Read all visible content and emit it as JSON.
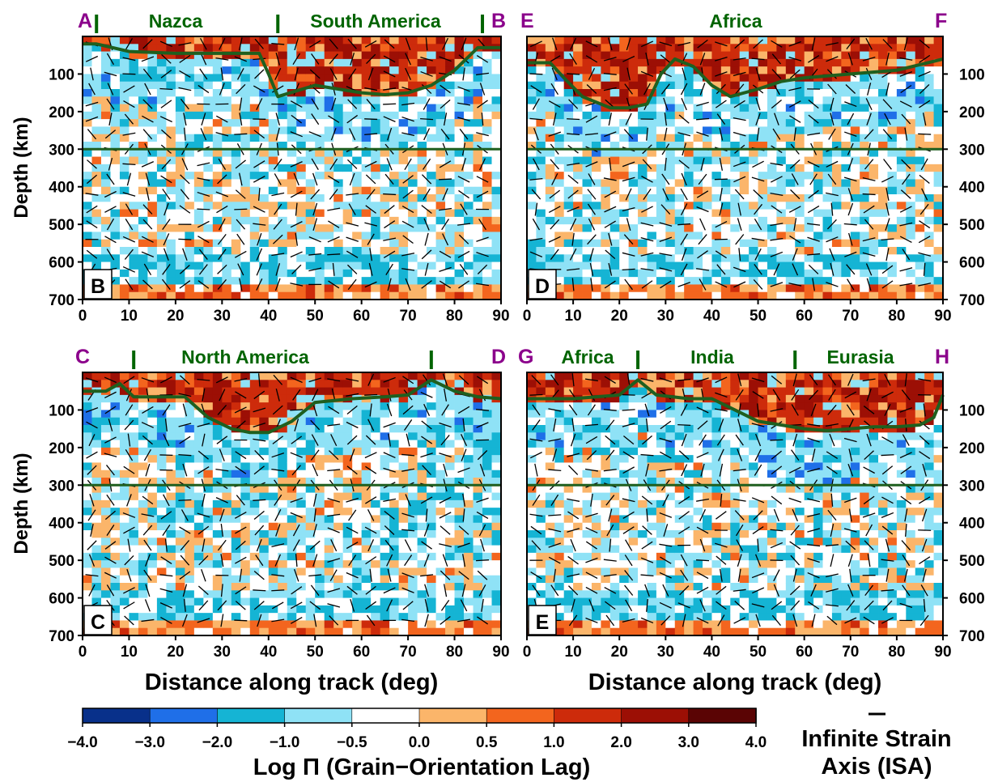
{
  "colors": {
    "region_label": "#006400",
    "endpoint_label": "#8b008b",
    "lab_line": "#1f5f1f",
    "axis": "#000000",
    "isa_tick": "#000000"
  },
  "colorbar": {
    "title": "Log Π (Grain−Orientation Lag)",
    "ticks": [
      "−4.0",
      "−3.0",
      "−2.0",
      "−1.0",
      "−0.5",
      "0.0",
      "0.5",
      "1.0",
      "2.0",
      "3.0",
      "4.0"
    ],
    "colors": [
      "#08308a",
      "#1f6fe8",
      "#15b4d4",
      "#8fe2f6",
      "#ffffff",
      "#fbb56a",
      "#f3651e",
      "#cd2b0b",
      "#9c0f05",
      "#5a0404"
    ]
  },
  "legend": {
    "isa_line1": "Infinite Strain",
    "isa_line2": "Axis (ISA)"
  },
  "chart_data": [
    {
      "type": "heatmap",
      "panel_label": "B",
      "endpoints": [
        "A",
        "B"
      ],
      "regions": [
        {
          "name": "Nazca",
          "x": 20
        },
        {
          "name": "South America",
          "x": 63
        }
      ],
      "boundaries": [
        3,
        42,
        86
      ],
      "xticks": [
        "0",
        "10",
        "20",
        "30",
        "40",
        "50",
        "60",
        "70",
        "80",
        "90"
      ],
      "yticks": [
        "100",
        "200",
        "300",
        "400",
        "500",
        "600",
        "700"
      ],
      "ylabel": "Depth (km)",
      "xlabel": "",
      "ylabel_side": "left",
      "xlim": [
        0,
        90
      ],
      "ylim": [
        0,
        700
      ],
      "reference_depth": 300,
      "lab_x": [
        0,
        3,
        10,
        20,
        30,
        38,
        40,
        42,
        46,
        50,
        55,
        60,
        65,
        70,
        75,
        80,
        85,
        90
      ],
      "lab_depth": [
        20,
        20,
        40,
        45,
        45,
        45,
        100,
        160,
        145,
        130,
        140,
        150,
        155,
        150,
        130,
        90,
        30,
        30
      ]
    },
    {
      "type": "heatmap",
      "panel_label": "D",
      "endpoints": [
        "E",
        "F"
      ],
      "regions": [
        {
          "name": "Africa",
          "x": 45
        }
      ],
      "boundaries": [],
      "xticks": [
        "0",
        "10",
        "20",
        "30",
        "40",
        "50",
        "60",
        "70",
        "80",
        "90"
      ],
      "yticks": [
        "100",
        "200",
        "300",
        "400",
        "500",
        "600",
        "700"
      ],
      "ylabel": "",
      "xlabel": "",
      "ylabel_side": "right",
      "xlim": [
        0,
        90
      ],
      "ylim": [
        0,
        700
      ],
      "reference_depth": 300,
      "lab_x": [
        0,
        5,
        8,
        12,
        18,
        22,
        26,
        29,
        32,
        36,
        40,
        44,
        50,
        55,
        60,
        70,
        80,
        90
      ],
      "lab_depth": [
        70,
        70,
        110,
        160,
        190,
        190,
        180,
        100,
        60,
        80,
        130,
        160,
        140,
        120,
        110,
        100,
        90,
        60
      ]
    },
    {
      "type": "heatmap",
      "panel_label": "C",
      "endpoints": [
        "C",
        "D"
      ],
      "regions": [
        {
          "name": "North America",
          "x": 35
        }
      ],
      "boundaries": [
        11,
        75
      ],
      "xticks": [
        "0",
        "10",
        "20",
        "30",
        "40",
        "50",
        "60",
        "70",
        "80",
        "90"
      ],
      "yticks": [
        "100",
        "200",
        "300",
        "400",
        "500",
        "600",
        "700"
      ],
      "ylabel": "Depth (km)",
      "xlabel": "Distance along track (deg)",
      "ylabel_side": "left",
      "xlim": [
        0,
        90
      ],
      "ylim": [
        0,
        700
      ],
      "reference_depth": 300,
      "lab_x": [
        0,
        5,
        8,
        11,
        15,
        22,
        27,
        32,
        36,
        40,
        45,
        50,
        58,
        65,
        70,
        75,
        80,
        85,
        90
      ],
      "lab_depth": [
        50,
        50,
        30,
        65,
        65,
        65,
        120,
        150,
        160,
        160,
        130,
        80,
        70,
        65,
        60,
        20,
        50,
        65,
        70
      ]
    },
    {
      "type": "heatmap",
      "panel_label": "E",
      "endpoints": [
        "G",
        "H"
      ],
      "regions": [
        {
          "name": "Africa",
          "x": 13
        },
        {
          "name": "India",
          "x": 40
        },
        {
          "name": "Eurasia",
          "x": 72
        }
      ],
      "boundaries": [
        24,
        58
      ],
      "xticks": [
        "0",
        "10",
        "20",
        "30",
        "40",
        "50",
        "60",
        "70",
        "80",
        "90"
      ],
      "yticks": [
        "100",
        "200",
        "300",
        "400",
        "500",
        "600",
        "700"
      ],
      "ylabel": "",
      "xlabel": "Distance along track (deg)",
      "ylabel_side": "right",
      "xlim": [
        0,
        90
      ],
      "ylim": [
        0,
        700
      ],
      "reference_depth": 300,
      "lab_x": [
        0,
        10,
        20,
        24,
        28,
        35,
        40,
        45,
        50,
        55,
        60,
        65,
        70,
        75,
        80,
        85,
        88,
        90
      ],
      "lab_depth": [
        70,
        70,
        60,
        20,
        60,
        70,
        70,
        100,
        130,
        140,
        150,
        155,
        150,
        145,
        145,
        140,
        120,
        60
      ]
    }
  ]
}
